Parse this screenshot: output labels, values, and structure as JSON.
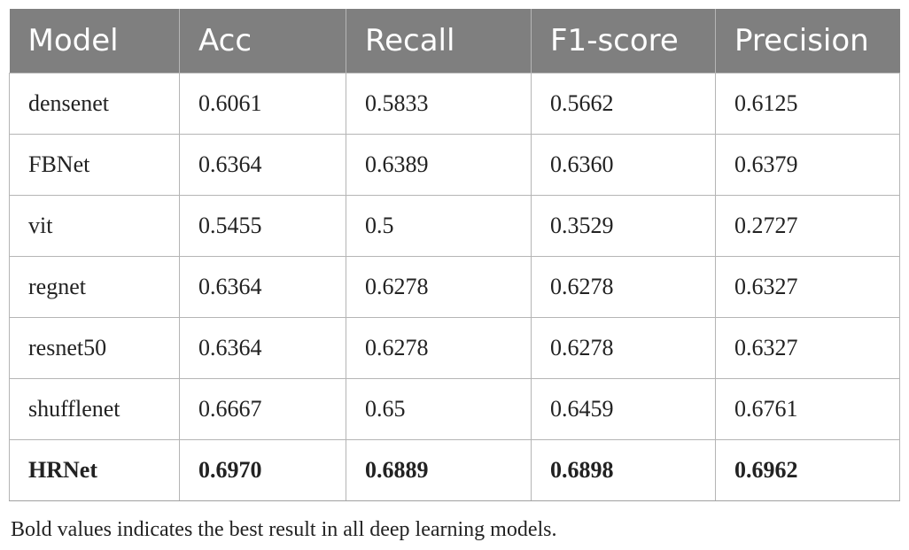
{
  "table": {
    "headers": [
      "Model",
      "Acc",
      "Recall",
      "F1-score",
      "Precision"
    ],
    "rows": [
      [
        "densenet",
        "0.6061",
        "0.5833",
        "0.5662",
        "0.6125"
      ],
      [
        "FBNet",
        "0.6364",
        "0.6389",
        "0.6360",
        "0.6379"
      ],
      [
        "vit",
        "0.5455",
        "0.5",
        "0.3529",
        "0.2727"
      ],
      [
        "regnet",
        "0.6364",
        "0.6278",
        "0.6278",
        "0.6327"
      ],
      [
        "resnet50",
        "0.6364",
        "0.6278",
        "0.6278",
        "0.6327"
      ],
      [
        "shufflenet",
        "0.6667",
        "0.65",
        "0.6459",
        "0.6761"
      ],
      [
        "HRNet",
        "0.6970",
        "0.6889",
        "0.6898",
        "0.6962"
      ]
    ],
    "bold_row": "HRNet"
  },
  "footnote": "Bold values indicates the best result in all deep learning models.",
  "colors": {
    "header_bg": "#7f7f7f",
    "header_text": "#ffffff",
    "grid": "#b5b5b5"
  }
}
